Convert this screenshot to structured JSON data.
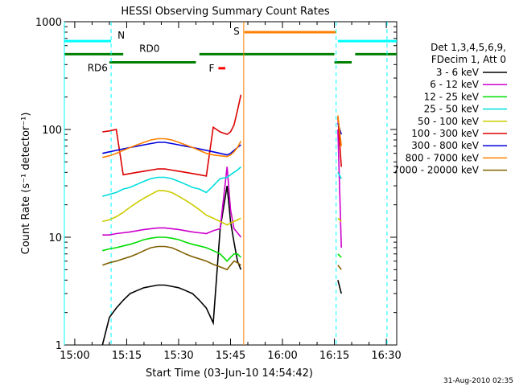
{
  "chart_data": {
    "type": "line",
    "title": "HESSI Observing Summary Count Rates",
    "xlabel": "Start Time (03-Jun-10 14:54:42)",
    "ylabel": "Count Rate (s⁻¹ detector⁻¹)",
    "yscale": "log",
    "ylim": [
      1,
      1000
    ],
    "xlim_minutes": [
      -3,
      93
    ],
    "x_ticks": [
      {
        "label": "15:00",
        "minute": 0
      },
      {
        "label": "15:15",
        "minute": 15
      },
      {
        "label": "15:30",
        "minute": 30
      },
      {
        "label": "15:45",
        "minute": 45
      },
      {
        "label": "16:00",
        "minute": 60
      },
      {
        "label": "16:15",
        "minute": 75
      },
      {
        "label": "16:30",
        "minute": 90
      }
    ],
    "y_ticks": [
      {
        "label": "1",
        "value": 1
      },
      {
        "label": "10",
        "value": 10
      },
      {
        "label": "100",
        "value": 100
      },
      {
        "label": "1000",
        "value": 1000
      }
    ],
    "legend_header": [
      "Det 1,3,4,5,6,9,",
      "FDecim 1, Att 0"
    ],
    "legend_position": "right",
    "series": [
      {
        "name": "3 - 6 keV",
        "color": "#000000",
        "x": [
          8,
          10,
          12,
          14,
          16,
          18,
          20,
          22,
          24,
          26,
          28,
          30,
          32,
          34,
          36,
          38,
          40,
          42,
          44,
          45,
          46,
          47,
          48,
          76,
          77
        ],
        "y": [
          1,
          1.8,
          2.2,
          2.6,
          3,
          3.2,
          3.4,
          3.5,
          3.6,
          3.6,
          3.5,
          3.4,
          3.2,
          3,
          2.6,
          2.2,
          1.6,
          12,
          30,
          14,
          9,
          6,
          5,
          4,
          3
        ]
      },
      {
        "name": "6 - 12 keV",
        "color": "#cc00cc",
        "x": [
          8,
          10,
          12,
          14,
          16,
          18,
          20,
          22,
          24,
          26,
          28,
          30,
          32,
          34,
          36,
          38,
          40,
          42,
          44,
          45,
          46,
          47,
          48,
          76,
          77
        ],
        "y": [
          10.5,
          10.5,
          10.8,
          11,
          11.2,
          11.5,
          11.8,
          12,
          12.2,
          12.2,
          12,
          11.8,
          11.5,
          11.2,
          11,
          10.8,
          11.5,
          12,
          45,
          18,
          12,
          11,
          10,
          100,
          8
        ]
      },
      {
        "name": "12 - 25 keV",
        "color": "#00dd00",
        "x": [
          8,
          10,
          12,
          14,
          16,
          18,
          20,
          22,
          24,
          26,
          28,
          30,
          32,
          34,
          36,
          38,
          40,
          42,
          44,
          45,
          46,
          47,
          48,
          76,
          77
        ],
        "y": [
          7.5,
          7.8,
          8,
          8.3,
          8.6,
          9,
          9.5,
          9.8,
          10,
          10,
          9.8,
          9.5,
          9,
          8.6,
          8.3,
          8,
          7.5,
          7,
          6,
          6.5,
          7,
          7,
          6.5,
          7,
          6.5
        ]
      },
      {
        "name": "25 - 50 keV",
        "color": "#00dddd",
        "x": [
          8,
          10,
          12,
          14,
          16,
          18,
          20,
          22,
          24,
          26,
          28,
          30,
          32,
          34,
          36,
          38,
          40,
          42,
          44,
          45,
          46,
          47,
          48,
          76,
          77
        ],
        "y": [
          24,
          25,
          26,
          28,
          29,
          31,
          33,
          35,
          36,
          36,
          35,
          33,
          31,
          29,
          28,
          26,
          30,
          35,
          36,
          38,
          40,
          42,
          45,
          40,
          35
        ]
      },
      {
        "name": "50 - 100 keV",
        "color": "#cccc00",
        "x": [
          8,
          10,
          12,
          14,
          16,
          18,
          20,
          22,
          24,
          26,
          28,
          30,
          32,
          34,
          36,
          38,
          40,
          42,
          44,
          45,
          46,
          47,
          48,
          76,
          77
        ],
        "y": [
          14,
          14.5,
          15.5,
          17,
          19,
          21,
          23,
          25,
          27,
          27,
          26,
          24,
          22,
          20,
          18,
          16,
          15,
          14,
          13,
          13.5,
          14,
          14.5,
          15,
          15,
          14
        ]
      },
      {
        "name": "100 - 300 keV",
        "color": "#dd0000",
        "x": [
          8,
          10,
          12,
          14,
          16,
          18,
          20,
          22,
          24,
          26,
          28,
          30,
          32,
          34,
          36,
          38,
          40,
          42,
          44,
          45,
          46,
          47,
          48,
          76,
          77
        ],
        "y": [
          95,
          97,
          100,
          38,
          39,
          40,
          41,
          42,
          43,
          43,
          42,
          41,
          40,
          39,
          38,
          37,
          105,
          95,
          90,
          95,
          110,
          150,
          210,
          130,
          45
        ]
      },
      {
        "name": "300 - 800 keV",
        "color": "#0000dd",
        "x": [
          8,
          10,
          12,
          14,
          16,
          18,
          20,
          22,
          24,
          26,
          28,
          30,
          32,
          34,
          36,
          38,
          40,
          42,
          44,
          45,
          46,
          47,
          48,
          76,
          77
        ],
        "y": [
          60,
          62,
          64,
          66,
          68,
          70,
          72,
          74,
          76,
          76,
          74,
          72,
          70,
          68,
          66,
          64,
          62,
          60,
          58,
          60,
          64,
          68,
          72,
          115,
          90
        ]
      },
      {
        "name": "800 - 7000 keV",
        "color": "#ff8000",
        "x": [
          8,
          10,
          12,
          14,
          16,
          18,
          20,
          22,
          24,
          26,
          28,
          30,
          32,
          34,
          36,
          38,
          40,
          42,
          44,
          45,
          46,
          47,
          48,
          76,
          77
        ],
        "y": [
          55,
          57,
          60,
          64,
          68,
          72,
          76,
          80,
          82,
          82,
          80,
          76,
          72,
          68,
          64,
          60,
          58,
          57,
          56,
          58,
          62,
          68,
          78,
          135,
          70
        ]
      },
      {
        "name": "7000 - 20000 keV",
        "color": "#806000",
        "x": [
          8,
          10,
          12,
          14,
          16,
          18,
          20,
          22,
          24,
          26,
          28,
          30,
          32,
          34,
          36,
          38,
          40,
          42,
          44,
          45,
          46,
          47,
          48,
          76,
          77
        ],
        "y": [
          5.5,
          5.8,
          6,
          6.3,
          6.6,
          7,
          7.5,
          8,
          8.2,
          8.2,
          8,
          7.5,
          7,
          6.6,
          6.3,
          6,
          5.6,
          5.3,
          5,
          5.5,
          6,
          5.8,
          5.5,
          5.5,
          5
        ]
      }
    ],
    "flag_bars": [
      {
        "label": "N",
        "color": "#00ffff",
        "y": 660,
        "segments": [
          [
            -3,
            10.5
          ],
          [
            76,
            93
          ]
        ]
      },
      {
        "label": "S",
        "color": "#ff8000",
        "y": 800,
        "segments": [
          [
            49,
            75.5
          ]
        ]
      },
      {
        "label": "RD0",
        "color": "#008000",
        "y": 500,
        "segments": [
          [
            -3,
            14
          ],
          [
            36,
            75
          ],
          [
            81,
            93
          ]
        ]
      },
      {
        "label": "RD6",
        "color": "#008000",
        "y": 420,
        "segments": [
          [
            10,
            35
          ],
          [
            75,
            80
          ]
        ]
      },
      {
        "label": "F",
        "color": "#ff0000",
        "y": 370,
        "segments": [
          [
            41.5,
            43.5
          ]
        ]
      }
    ],
    "vertical_markers": [
      {
        "minute": -3,
        "color": "#00ffff",
        "style": "solid"
      },
      {
        "minute": 10.5,
        "color": "#00ffff",
        "style": "dashed"
      },
      {
        "minute": 48.8,
        "color": "#ff8000",
        "style": "solid"
      },
      {
        "minute": 75.5,
        "color": "#00ffff",
        "style": "dashed"
      },
      {
        "minute": 90.2,
        "color": "#00ffff",
        "style": "dashed"
      }
    ]
  },
  "footer": {
    "timestamp": "31-Aug-2010 02:35"
  }
}
